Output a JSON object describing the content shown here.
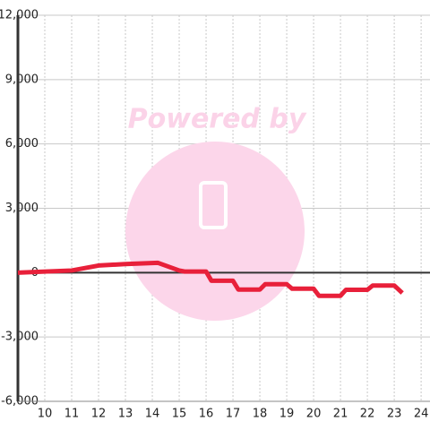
{
  "chart_data": {
    "type": "line",
    "watermark": "Powered by",
    "x": [
      9,
      11,
      12,
      13,
      14.2,
      15,
      15.2,
      16,
      16.2,
      17,
      17.2,
      18,
      18.2,
      19,
      19.2,
      20,
      20.2,
      21,
      21.2,
      22,
      22.2,
      23,
      23.3
    ],
    "values": [
      0,
      100,
      330,
      400,
      460,
      100,
      50,
      50,
      -380,
      -380,
      -790,
      -790,
      -540,
      -540,
      -750,
      -750,
      -1080,
      -1080,
      -800,
      -800,
      -600,
      -600,
      -950
    ],
    "color": "#e8203a",
    "xlim": [
      9,
      24.33
    ],
    "xticks": [
      10,
      11,
      12,
      13,
      14,
      15,
      16,
      17,
      18,
      19,
      20,
      21,
      22,
      23,
      24
    ],
    "ylim": [
      -6000,
      12000
    ],
    "yticks": [
      {
        "value": -6000,
        "label": "-6,000"
      },
      {
        "value": -3000,
        "label": "-3,000"
      },
      0,
      {
        "value": 3000,
        "label": "3,000"
      },
      {
        "value": 6000,
        "label": "6,000"
      },
      {
        "value": 9000,
        "label": "9,000"
      },
      {
        "value": 12000,
        "label": "12,000"
      }
    ],
    "grid": true
  }
}
